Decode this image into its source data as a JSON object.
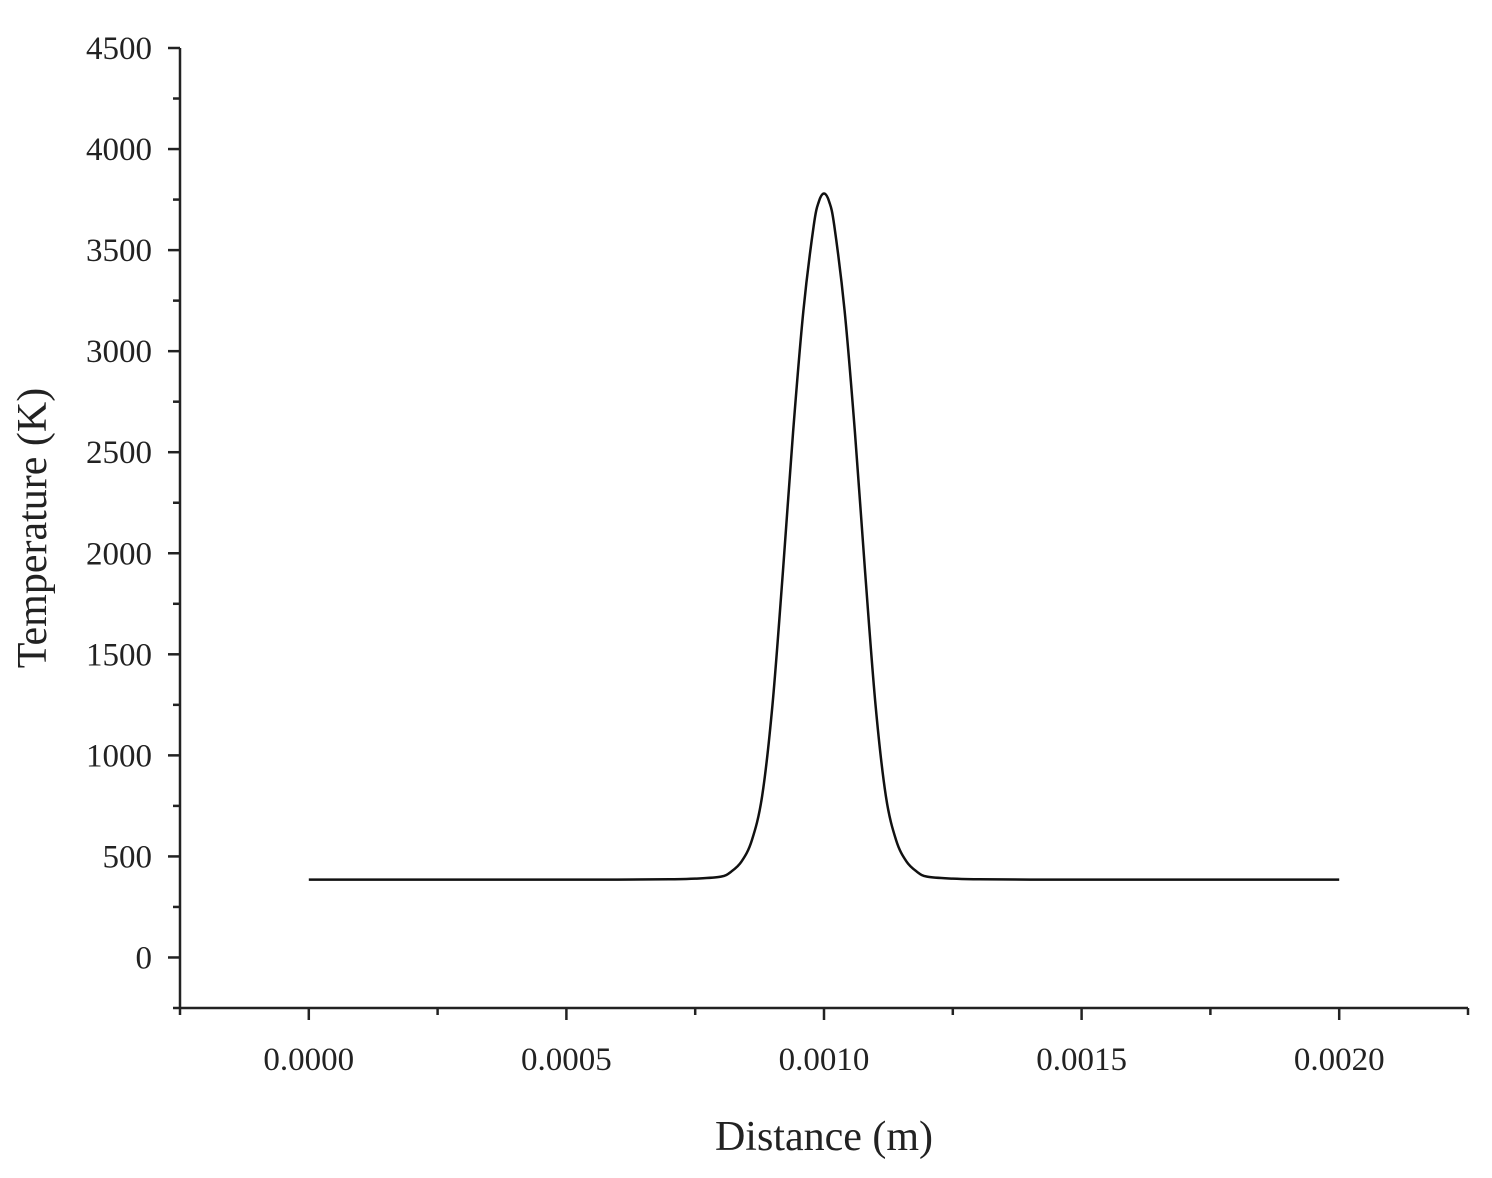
{
  "chart_data": {
    "type": "line",
    "title": "",
    "xlabel": "Distance (m)",
    "ylabel": "Temperature (K)",
    "xlim": [
      -0.00025,
      0.00225
    ],
    "ylim": [
      -250,
      4500
    ],
    "xticks": [
      0.0,
      0.0005,
      0.001,
      0.0015,
      0.002
    ],
    "xtick_labels": [
      "0.0000",
      "0.0005",
      "0.0010",
      "0.0015",
      "0.0020"
    ],
    "yticks": [
      0,
      500,
      1000,
      1500,
      2000,
      2500,
      3000,
      3500,
      4000,
      4500
    ],
    "ytick_labels": [
      "0",
      "500",
      "1000",
      "1500",
      "2000",
      "2500",
      "3000",
      "3500",
      "4000",
      "4500"
    ],
    "grid": false,
    "legend": "none",
    "series": [
      {
        "x": [
          0.0,
          0.0002,
          0.0004,
          0.0006,
          0.0007,
          0.00075,
          0.0008,
          0.00082,
          0.00084,
          0.00086,
          0.00088,
          0.0009,
          0.00092,
          0.00094,
          0.00096,
          0.00098,
          0.00099,
          0.001,
          0.00101,
          0.00102,
          0.00104,
          0.00106,
          0.00108,
          0.0011,
          0.00112,
          0.00114,
          0.00116,
          0.00118,
          0.0012,
          0.00125,
          0.0013,
          0.0014,
          0.0016,
          0.0018,
          0.002
        ],
        "y": [
          385,
          385,
          385,
          385,
          387,
          390,
          400,
          425,
          475,
          580,
          800,
          1250,
          1900,
          2600,
          3200,
          3620,
          3740,
          3780,
          3740,
          3620,
          3200,
          2600,
          1900,
          1250,
          800,
          580,
          475,
          425,
          400,
          390,
          387,
          385,
          385,
          385,
          385
        ]
      }
    ]
  }
}
